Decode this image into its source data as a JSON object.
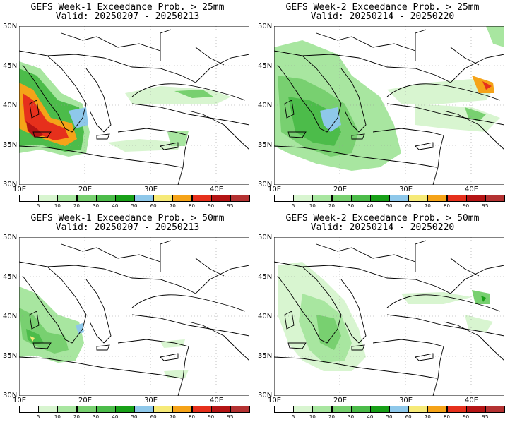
{
  "colorbar": {
    "labels": [
      "5",
      "10",
      "20",
      "30",
      "40",
      "50",
      "60",
      "70",
      "80",
      "90",
      "95"
    ],
    "colors": [
      "#ffffff",
      "#d8f5d0",
      "#a8e6a0",
      "#78d070",
      "#4cbc4a",
      "#18a018",
      "#8ec8ea",
      "#f6ea78",
      "#f5a318",
      "#e6301c",
      "#b41414",
      "#b43232"
    ]
  },
  "axes": {
    "lat_labels": [
      "50N",
      "45N",
      "40N",
      "35N",
      "30N"
    ],
    "lon_labels": [
      "10E",
      "20E",
      "30E",
      "40E"
    ]
  },
  "panels": [
    {
      "title": "GEFS Week-1 Exceedance Prob. > 25mm",
      "valid": "Valid: 20250207 - 20250213"
    },
    {
      "title": "GEFS Week-2 Exceedance Prob. > 25mm",
      "valid": "Valid: 20250214 - 20250220"
    },
    {
      "title": "GEFS Week-1 Exceedance Prob. > 50mm",
      "valid": "Valid: 20250207 - 20250213"
    },
    {
      "title": "GEFS Week-2 Exceedance Prob. > 50mm",
      "valid": "Valid: 20250214 - 20250220"
    }
  ]
}
